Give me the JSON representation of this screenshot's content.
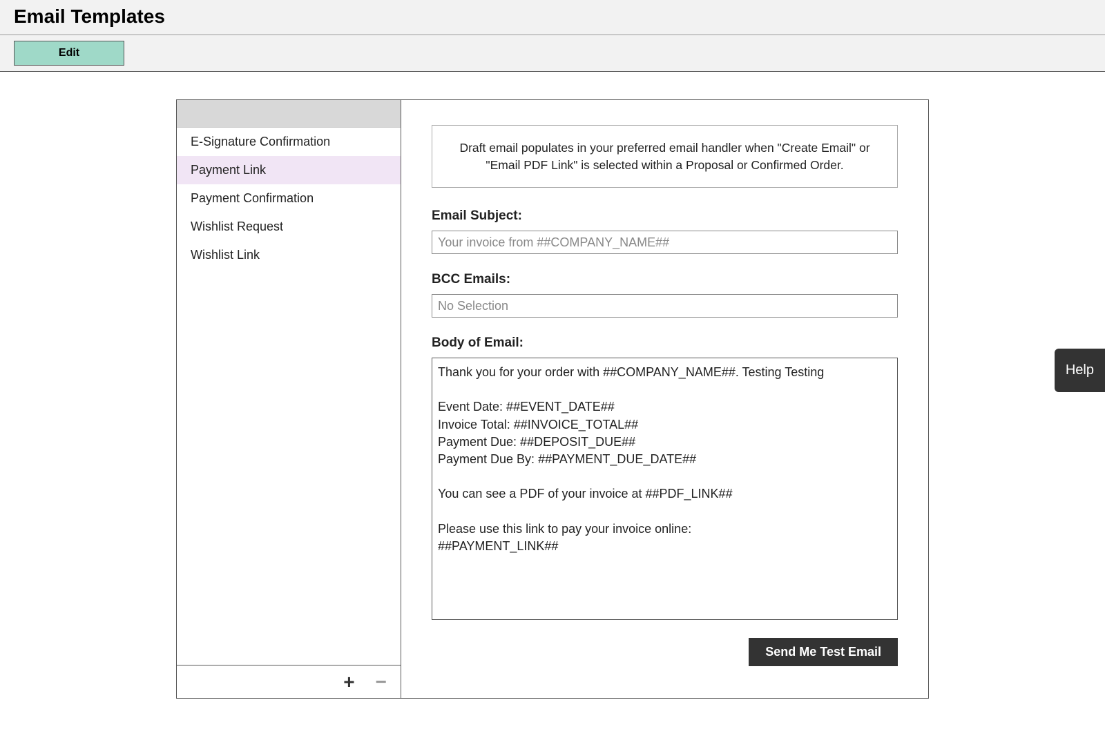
{
  "page": {
    "title": "Email Templates",
    "edit_button": "Edit",
    "help_label": "Help"
  },
  "sidebar": {
    "items": [
      {
        "label": "E-Signature Confirmation",
        "selected": false
      },
      {
        "label": "Payment Link",
        "selected": true
      },
      {
        "label": "Payment Confirmation",
        "selected": false
      },
      {
        "label": "Wishlist Request",
        "selected": false
      },
      {
        "label": "Wishlist Link",
        "selected": false
      }
    ],
    "add_icon": "+",
    "remove_icon": "−"
  },
  "form": {
    "info_text": "Draft email populates in your preferred email handler when \"Create Email\" or \"Email PDF Link\" is selected within a Proposal or Confirmed Order.",
    "subject_label": "Email Subject:",
    "subject_value": "Your invoice from ##COMPANY_NAME##",
    "bcc_label": "BCC  Emails:",
    "bcc_value": "No Selection",
    "body_label": "Body of Email:",
    "body_value": "Thank you for your order with ##COMPANY_NAME##. Testing Testing\n\nEvent Date: ##EVENT_DATE##\nInvoice Total: ##INVOICE_TOTAL##\nPayment Due: ##DEPOSIT_DUE##\nPayment Due By: ##PAYMENT_DUE_DATE##\n\nYou can see a PDF of your invoice at ##PDF_LINK##\n\nPlease use this link to pay your invoice online:\n##PAYMENT_LINK##",
    "send_button": "Send Me Test Email"
  },
  "colors": {
    "header_bg": "#f2f2f2",
    "edit_button_bg": "#9fd9c8",
    "selected_row_bg": "#f1e5f5",
    "dark_button_bg": "#333333",
    "border": "#555555"
  }
}
